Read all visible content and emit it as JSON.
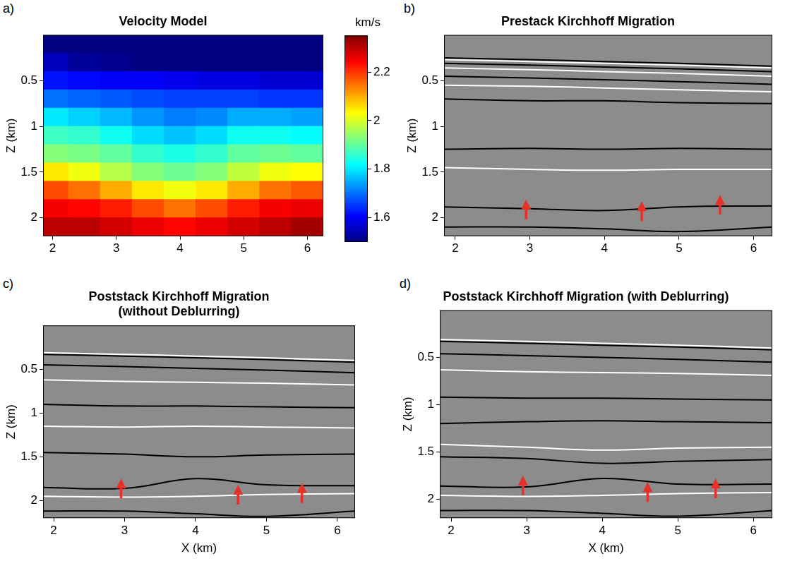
{
  "chart_data": [
    {
      "panel": "a)",
      "type": "heatmap",
      "title": "Velocity Model",
      "y_label": "Z (km)",
      "xlim": [
        1.85,
        6.25
      ],
      "xticks": [
        2,
        3,
        4,
        5,
        6
      ],
      "ylim": [
        0,
        2.2
      ],
      "yticks": [
        0.5,
        1,
        1.5,
        2
      ],
      "x": [
        2,
        2.5,
        3,
        3.5,
        4,
        4.5,
        5,
        5.5,
        6
      ],
      "y": [
        0.1,
        0.3,
        0.5,
        0.7,
        0.9,
        1.1,
        1.3,
        1.5,
        1.7,
        1.9,
        2.1
      ],
      "cells": [
        [
          1.5,
          1.5,
          1.5,
          1.5,
          1.5,
          1.5,
          1.5,
          1.5,
          1.5
        ],
        [
          1.55,
          1.52,
          1.51,
          1.5,
          1.5,
          1.5,
          1.5,
          1.5,
          1.5
        ],
        [
          1.62,
          1.61,
          1.6,
          1.6,
          1.59,
          1.58,
          1.58,
          1.57,
          1.57
        ],
        [
          1.7,
          1.69,
          1.68,
          1.67,
          1.66,
          1.66,
          1.66,
          1.65,
          1.65
        ],
        [
          1.8,
          1.78,
          1.76,
          1.73,
          1.71,
          1.72,
          1.75,
          1.75,
          1.74
        ],
        [
          1.87,
          1.86,
          1.83,
          1.79,
          1.77,
          1.79,
          1.83,
          1.83,
          1.82
        ],
        [
          1.93,
          1.92,
          1.9,
          1.86,
          1.84,
          1.86,
          1.9,
          1.91,
          1.9
        ],
        [
          2.05,
          2.02,
          1.97,
          1.93,
          1.91,
          1.93,
          1.98,
          2.02,
          2.03
        ],
        [
          2.18,
          2.15,
          2.1,
          2.05,
          2.02,
          2.05,
          2.1,
          2.15,
          2.17
        ],
        [
          2.25,
          2.24,
          2.22,
          2.18,
          2.15,
          2.18,
          2.22,
          2.25,
          2.26
        ],
        [
          2.3,
          2.3,
          2.28,
          2.26,
          2.24,
          2.26,
          2.28,
          2.3,
          2.32
        ]
      ],
      "colorbar": {
        "label": "km/s",
        "range": [
          1.5,
          2.35
        ],
        "ticks": [
          1.6,
          1.8,
          2,
          2.2
        ]
      }
    },
    {
      "panel": "b)",
      "type": "line",
      "title": "Prestack Kirchhoff Migration",
      "y_label": "Z (km)",
      "xlim": [
        1.85,
        6.25
      ],
      "xticks": [
        2,
        3,
        4,
        5,
        6
      ],
      "ylim": [
        0,
        2.2
      ],
      "yticks": [
        0.5,
        1,
        1.5,
        2
      ],
      "x": [
        1.85,
        3,
        4,
        5,
        6.25
      ],
      "series": [
        {
          "color": "#000000",
          "values": [
            0.25,
            0.27,
            0.29,
            0.31,
            0.34
          ]
        },
        {
          "color": "#ffffff",
          "values": [
            0.27,
            0.29,
            0.31,
            0.33,
            0.36
          ]
        },
        {
          "color": "#000000",
          "values": [
            0.31,
            0.33,
            0.35,
            0.37,
            0.4
          ]
        },
        {
          "color": "#ffffff",
          "values": [
            0.36,
            0.38,
            0.4,
            0.42,
            0.45
          ]
        },
        {
          "color": "#000000",
          "values": [
            0.45,
            0.47,
            0.49,
            0.51,
            0.54
          ]
        },
        {
          "color": "#ffffff",
          "values": [
            0.55,
            0.56,
            0.58,
            0.6,
            0.62
          ]
        },
        {
          "color": "#000000",
          "values": [
            0.7,
            0.72,
            0.72,
            0.74,
            0.75
          ]
        },
        {
          "color": "#000000",
          "values": [
            1.25,
            1.24,
            1.25,
            1.24,
            1.25
          ]
        },
        {
          "color": "#ffffff",
          "values": [
            1.45,
            1.47,
            1.48,
            1.47,
            1.47
          ]
        },
        {
          "color": "#000000",
          "values": [
            1.88,
            1.9,
            1.92,
            1.88,
            1.87
          ]
        },
        {
          "color": "#000000",
          "values": [
            2.1,
            2.1,
            2.12,
            2.15,
            2.1
          ]
        }
      ],
      "arrows": {
        "color": "#e8302a",
        "x": [
          2.95,
          4.5,
          5.55
        ],
        "y": [
          1.8,
          1.82,
          1.75
        ]
      }
    },
    {
      "panel": "c)",
      "type": "line",
      "title": "Poststack Kirchhoff Migration (without Deblurring)",
      "x_label": "X (km)",
      "y_label": "Z (km)",
      "xlim": [
        1.85,
        6.25
      ],
      "xticks": [
        2,
        3,
        4,
        5,
        6
      ],
      "ylim": [
        0,
        2.2
      ],
      "yticks": [
        0.5,
        1,
        1.5,
        2
      ],
      "x": [
        1.85,
        3,
        4,
        5,
        6.25
      ],
      "series": [
        {
          "color": "#ffffff",
          "values": [
            0.31,
            0.33,
            0.35,
            0.37,
            0.4
          ]
        },
        {
          "color": "#000000",
          "values": [
            0.33,
            0.35,
            0.37,
            0.39,
            0.42
          ]
        },
        {
          "color": "#000000",
          "values": [
            0.45,
            0.47,
            0.49,
            0.51,
            0.54
          ]
        },
        {
          "color": "#ffffff",
          "values": [
            0.62,
            0.64,
            0.65,
            0.66,
            0.68
          ]
        },
        {
          "color": "#000000",
          "values": [
            0.9,
            0.92,
            0.92,
            0.93,
            0.94
          ]
        },
        {
          "color": "#ffffff",
          "values": [
            1.15,
            1.16,
            1.15,
            1.16,
            1.17
          ]
        },
        {
          "color": "#000000",
          "values": [
            1.45,
            1.47,
            1.5,
            1.48,
            1.47
          ]
        },
        {
          "color": "#000000",
          "values": [
            1.85,
            1.86,
            1.75,
            1.82,
            1.83
          ]
        },
        {
          "color": "#ffffff",
          "values": [
            1.95,
            1.96,
            1.95,
            1.93,
            1.92
          ]
        },
        {
          "color": "#000000",
          "values": [
            2.12,
            2.12,
            2.15,
            2.18,
            2.12
          ]
        }
      ],
      "arrows": {
        "color": "#e8302a",
        "x": [
          2.95,
          4.6,
          5.5
        ],
        "y": [
          1.75,
          1.82,
          1.8
        ]
      }
    },
    {
      "panel": "d)",
      "type": "line",
      "title": "Poststack Kirchhoff Migration (with Deblurring)",
      "x_label": "X (km)",
      "y_label": "Z (km)",
      "xlim": [
        1.85,
        6.25
      ],
      "xticks": [
        2,
        3,
        4,
        5,
        6
      ],
      "ylim": [
        0,
        2.2
      ],
      "yticks": [
        0.5,
        1,
        1.5,
        2
      ],
      "x": [
        1.85,
        3,
        4,
        5,
        6.25
      ],
      "series": [
        {
          "color": "#ffffff",
          "values": [
            0.31,
            0.33,
            0.35,
            0.37,
            0.4
          ]
        },
        {
          "color": "#000000",
          "values": [
            0.33,
            0.35,
            0.37,
            0.39,
            0.42
          ]
        },
        {
          "color": "#000000",
          "values": [
            0.46,
            0.48,
            0.5,
            0.52,
            0.55
          ]
        },
        {
          "color": "#ffffff",
          "values": [
            0.63,
            0.65,
            0.66,
            0.67,
            0.69
          ]
        },
        {
          "color": "#000000",
          "values": [
            0.92,
            0.93,
            0.93,
            0.94,
            0.95
          ]
        },
        {
          "color": "#000000",
          "values": [
            1.2,
            1.18,
            1.17,
            1.18,
            1.19
          ]
        },
        {
          "color": "#ffffff",
          "values": [
            1.42,
            1.45,
            1.48,
            1.46,
            1.45
          ]
        },
        {
          "color": "#000000",
          "values": [
            1.55,
            1.57,
            1.62,
            1.6,
            1.58
          ]
        },
        {
          "color": "#000000",
          "values": [
            1.86,
            1.87,
            1.78,
            1.84,
            1.84
          ]
        },
        {
          "color": "#ffffff",
          "values": [
            1.96,
            1.97,
            1.96,
            1.94,
            1.93
          ]
        },
        {
          "color": "#000000",
          "values": [
            2.12,
            2.12,
            2.15,
            2.18,
            2.12
          ]
        }
      ],
      "arrows": {
        "color": "#e8302a",
        "x": [
          2.95,
          4.6,
          5.5
        ],
        "y": [
          1.75,
          1.82,
          1.78
        ]
      }
    }
  ]
}
